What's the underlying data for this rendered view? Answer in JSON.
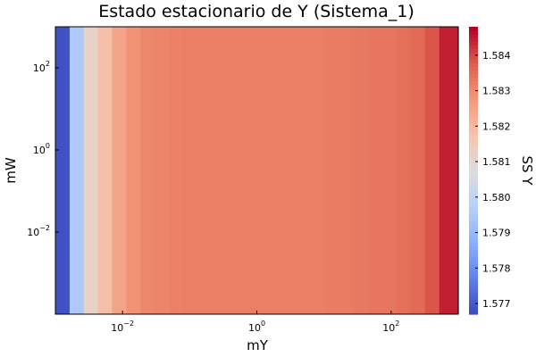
{
  "chart_data": {
    "type": "heatmap",
    "title": "Estado estacionario de Y (Sistema_1)",
    "xlabel": "mY",
    "ylabel": "mW",
    "colorbar_label": "SS Y",
    "x_scale": "log",
    "y_scale": "log",
    "xlim": [
      0.001,
      1000
    ],
    "ylim": [
      0.0001,
      1000
    ],
    "xticks": [
      {
        "base": "10",
        "exp": "−2",
        "value": 0.01
      },
      {
        "base": "10",
        "exp": "0",
        "value": 1
      },
      {
        "base": "10",
        "exp": "2",
        "value": 100
      }
    ],
    "yticks": [
      {
        "base": "10",
        "exp": "−2",
        "value": 0.01
      },
      {
        "base": "10",
        "exp": "0",
        "value": 1
      },
      {
        "base": "10",
        "exp": "2",
        "value": 100
      }
    ],
    "colormap": "coolwarm",
    "clim": [
      1.5767,
      1.5848
    ],
    "colorbar_ticks": [
      "1.577",
      "1.578",
      "1.579",
      "1.580",
      "1.581",
      "1.582",
      "1.583",
      "1.584"
    ],
    "column_edges_mY": [
      0.001,
      0.00163,
      0.00264,
      0.0043,
      0.007,
      0.0114,
      0.0185,
      0.03,
      0.05,
      0.08,
      0.13,
      0.21,
      0.35,
      0.57,
      0.92,
      1.5,
      2.45,
      4,
      6.5,
      10.5,
      17,
      28,
      45,
      74,
      120,
      195,
      320,
      520,
      1000
    ],
    "column_values_ssY": [
      1.5768,
      1.5795,
      1.5812,
      1.5819,
      1.5825,
      1.5829,
      1.5831,
      1.58315,
      1.5832,
      1.58325,
      1.58325,
      1.58325,
      1.58325,
      1.58325,
      1.58325,
      1.58325,
      1.58325,
      1.58325,
      1.58325,
      1.5833,
      1.5833,
      1.58335,
      1.5834,
      1.5834,
      1.5835,
      1.5836,
      1.5839,
      1.5845
    ]
  }
}
